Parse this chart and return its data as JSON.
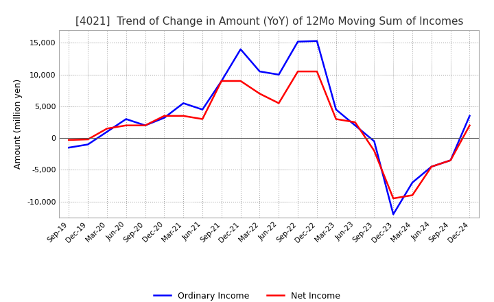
{
  "title": "[4021]  Trend of Change in Amount (YoY) of 12Mo Moving Sum of Incomes",
  "ylabel": "Amount (million yen)",
  "x_labels": [
    "Sep-19",
    "Dec-19",
    "Mar-20",
    "Jun-20",
    "Sep-20",
    "Dec-20",
    "Mar-21",
    "Jun-21",
    "Sep-21",
    "Dec-21",
    "Mar-22",
    "Jun-22",
    "Sep-22",
    "Dec-22",
    "Mar-23",
    "Jun-23",
    "Sep-23",
    "Dec-23",
    "Mar-24",
    "Jun-24",
    "Sep-24",
    "Dec-24"
  ],
  "ordinary_income": [
    -1500,
    -1000,
    1000,
    3000,
    2000,
    3200,
    5500,
    4500,
    9000,
    14000,
    10500,
    10000,
    15200,
    15300,
    4500,
    2000,
    -500,
    -12000,
    -7000,
    -4500,
    -3500,
    3500
  ],
  "net_income": [
    -300,
    -200,
    1500,
    2000,
    2000,
    3500,
    3500,
    3000,
    9000,
    9000,
    7000,
    5500,
    10500,
    10500,
    3000,
    2500,
    -2000,
    -9500,
    -9000,
    -4500,
    -3500,
    2000
  ],
  "ordinary_color": "#0000ff",
  "net_color": "#ff0000",
  "ylim": [
    -12500,
    17000
  ],
  "yticks": [
    -10000,
    -5000,
    0,
    5000,
    10000,
    15000
  ],
  "background_color": "#ffffff",
  "grid_color": "#aaaaaa",
  "title_fontsize": 11,
  "legend_ordinary": "Ordinary Income",
  "legend_net": "Net Income"
}
